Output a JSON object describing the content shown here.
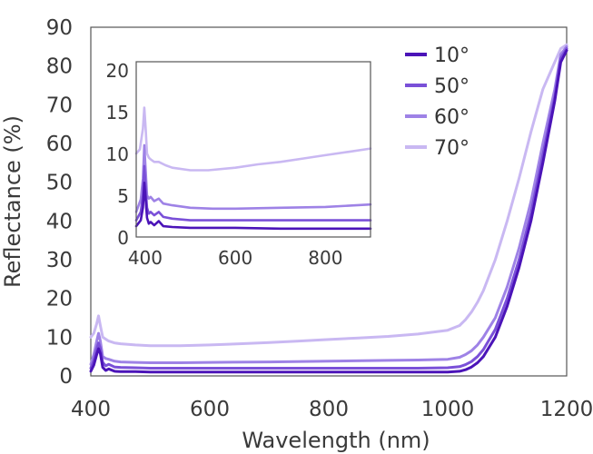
{
  "chart_data": [
    {
      "type": "line",
      "role": "main",
      "title": "",
      "xlabel": "Wavelength (nm)",
      "ylabel": "Reflectance (%)",
      "xlim": [
        400,
        1200
      ],
      "ylim": [
        0,
        90
      ],
      "xticks": [
        400,
        600,
        800,
        1000,
        1200
      ],
      "yticks": [
        0,
        10,
        20,
        30,
        40,
        50,
        60,
        70,
        80,
        90
      ],
      "grid": false,
      "legend": "top-right",
      "series": [
        {
          "name": "10°",
          "color": "#4b14b8",
          "x": [
            400,
            405,
            410,
            413,
            416,
            420,
            425,
            430,
            440,
            450,
            475,
            500,
            550,
            600,
            700,
            800,
            900,
            950,
            1000,
            1020,
            1030,
            1040,
            1050,
            1060,
            1080,
            1100,
            1120,
            1140,
            1160,
            1180,
            1190,
            1200
          ],
          "y": [
            1.2,
            2.8,
            5.5,
            7.0,
            5.8,
            2.2,
            1.4,
            1.8,
            1.2,
            1.1,
            1.1,
            1.0,
            1.0,
            1.0,
            1.0,
            1.0,
            1.0,
            1.0,
            1.0,
            1.2,
            1.6,
            2.3,
            3.4,
            5.0,
            10.0,
            18.0,
            28.0,
            40.0,
            55.0,
            71.0,
            81.0,
            84.0
          ]
        },
        {
          "name": "50°",
          "color": "#7a50d8",
          "x": [
            400,
            405,
            410,
            413,
            416,
            420,
            425,
            430,
            440,
            450,
            475,
            500,
            550,
            600,
            700,
            800,
            900,
            950,
            1000,
            1020,
            1030,
            1040,
            1050,
            1060,
            1080,
            1100,
            1120,
            1140,
            1160,
            1180,
            1190,
            1200
          ],
          "y": [
            2.0,
            4.0,
            7.0,
            8.5,
            7.0,
            3.5,
            2.6,
            3.0,
            2.3,
            2.2,
            2.1,
            2.0,
            2.0,
            2.0,
            2.0,
            2.0,
            2.0,
            2.0,
            2.1,
            2.4,
            2.9,
            3.7,
            5.0,
            6.8,
            12.0,
            20.0,
            30.0,
            42.0,
            57.0,
            72.0,
            82.0,
            84.5
          ]
        },
        {
          "name": "60°",
          "color": "#9e82e6",
          "x": [
            400,
            405,
            410,
            413,
            416,
            420,
            425,
            430,
            440,
            450,
            475,
            500,
            550,
            600,
            700,
            800,
            900,
            950,
            1000,
            1020,
            1030,
            1040,
            1050,
            1060,
            1080,
            1100,
            1120,
            1140,
            1160,
            1180,
            1190,
            1200
          ],
          "y": [
            3.0,
            5.5,
            9.0,
            11.0,
            9.0,
            5.0,
            4.5,
            4.3,
            3.8,
            3.6,
            3.5,
            3.4,
            3.4,
            3.5,
            3.6,
            3.8,
            4.0,
            4.1,
            4.3,
            4.8,
            5.5,
            6.5,
            8.0,
            10.0,
            15.0,
            23.0,
            33.0,
            45.0,
            60.0,
            74.0,
            83.0,
            85.0
          ]
        },
        {
          "name": "70°",
          "color": "#c9b8f2",
          "x": [
            400,
            405,
            410,
            413,
            416,
            420,
            425,
            430,
            440,
            450,
            475,
            500,
            550,
            600,
            650,
            700,
            750,
            800,
            850,
            900,
            950,
            1000,
            1020,
            1030,
            1040,
            1050,
            1060,
            1080,
            1100,
            1120,
            1140,
            1160,
            1180,
            1190,
            1200
          ],
          "y": [
            10.0,
            11.0,
            13.5,
            15.5,
            13.0,
            10.0,
            9.5,
            9.0,
            8.5,
            8.3,
            8.0,
            7.8,
            7.8,
            8.0,
            8.3,
            8.6,
            9.0,
            9.4,
            9.8,
            10.2,
            10.8,
            11.8,
            13.0,
            14.5,
            16.5,
            19.0,
            22.0,
            30.0,
            40.0,
            51.0,
            63.0,
            74.0,
            81.0,
            84.5,
            85.5
          ]
        }
      ]
    },
    {
      "type": "line",
      "role": "inset",
      "title": "",
      "xlabel": "",
      "ylabel": "",
      "xlim": [
        380,
        900
      ],
      "ylim": [
        0,
        21
      ],
      "xticks": [
        400,
        600,
        800
      ],
      "yticks": [
        0,
        5,
        10,
        15,
        20
      ],
      "grid": false,
      "series": [
        {
          "color": "#4b14b8",
          "x": [
            380,
            390,
            395,
            398,
            401,
            404,
            408,
            412,
            420,
            430,
            440,
            460,
            500,
            600,
            700,
            800,
            900
          ],
          "y": [
            1.3,
            2.0,
            3.5,
            6.5,
            4.5,
            2.3,
            1.6,
            1.8,
            1.4,
            1.9,
            1.3,
            1.2,
            1.1,
            1.1,
            1.0,
            1.0,
            1.0
          ]
        },
        {
          "color": "#7a50d8",
          "x": [
            380,
            390,
            395,
            398,
            401,
            404,
            408,
            412,
            420,
            430,
            440,
            460,
            500,
            600,
            700,
            800,
            900
          ],
          "y": [
            2.0,
            3.0,
            5.0,
            8.5,
            6.0,
            3.5,
            2.8,
            3.0,
            2.6,
            3.0,
            2.4,
            2.2,
            2.0,
            2.0,
            2.0,
            2.0,
            2.0
          ]
        },
        {
          "color": "#9e82e6",
          "x": [
            380,
            390,
            395,
            398,
            401,
            404,
            408,
            412,
            420,
            430,
            440,
            460,
            500,
            550,
            600,
            700,
            800,
            900
          ],
          "y": [
            3.0,
            4.5,
            7.0,
            11.0,
            8.0,
            5.0,
            4.6,
            4.8,
            4.3,
            4.6,
            4.0,
            3.8,
            3.5,
            3.4,
            3.4,
            3.5,
            3.6,
            3.9
          ]
        },
        {
          "color": "#c9b8f2",
          "x": [
            380,
            388,
            395,
            398,
            401,
            404,
            408,
            412,
            420,
            430,
            445,
            460,
            500,
            540,
            600,
            650,
            700,
            750,
            800,
            850,
            900
          ],
          "y": [
            10.0,
            10.5,
            13.0,
            15.5,
            13.0,
            10.0,
            9.5,
            9.3,
            9.0,
            9.0,
            8.6,
            8.3,
            8.0,
            8.0,
            8.3,
            8.7,
            9.0,
            9.4,
            9.8,
            10.2,
            10.6
          ]
        }
      ]
    }
  ]
}
